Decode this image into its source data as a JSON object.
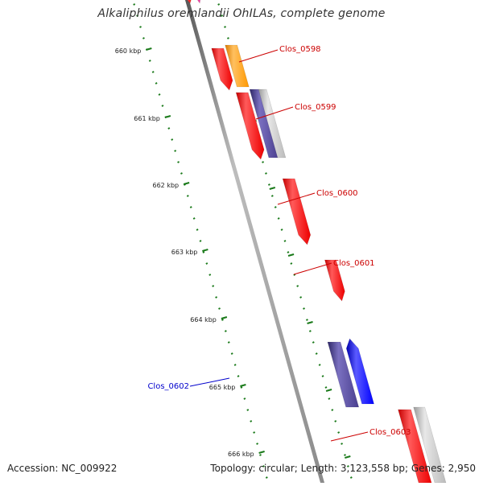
{
  "title": "Alkaliphilus oremlandii OhILAs, complete genome",
  "footer": {
    "accession": "Accession: NC_009922",
    "summary": "Topology: circular; Length: 3,123,558 bp; Genes: 2,950"
  },
  "colors": {
    "backbone": "#8a8a8a",
    "tick": "#1a7a1a",
    "forward_gene": "#ff0000",
    "alt_orange": "#ff9900",
    "dark_blue": "#4a3f8f",
    "blue": "#0000ff",
    "grey": "#bbbbbb",
    "magenta": "#e0208a",
    "label_red": "#cc0000",
    "label_blue": "#0000cc"
  },
  "kbp_ticks": [
    "660 kbp",
    "661 kbp",
    "662 kbp",
    "663 kbp",
    "664 kbp",
    "665 kbp",
    "666 kbp"
  ],
  "gene_labels": [
    {
      "text": "Clos_0598",
      "color": "label_red"
    },
    {
      "text": "Clos_0599",
      "color": "label_red"
    },
    {
      "text": "Clos_0600",
      "color": "label_red"
    },
    {
      "text": "Clos_0601",
      "color": "label_red"
    },
    {
      "text": "Clos_0602",
      "color": "label_blue"
    },
    {
      "text": "Clos_0603",
      "color": "label_red"
    }
  ]
}
